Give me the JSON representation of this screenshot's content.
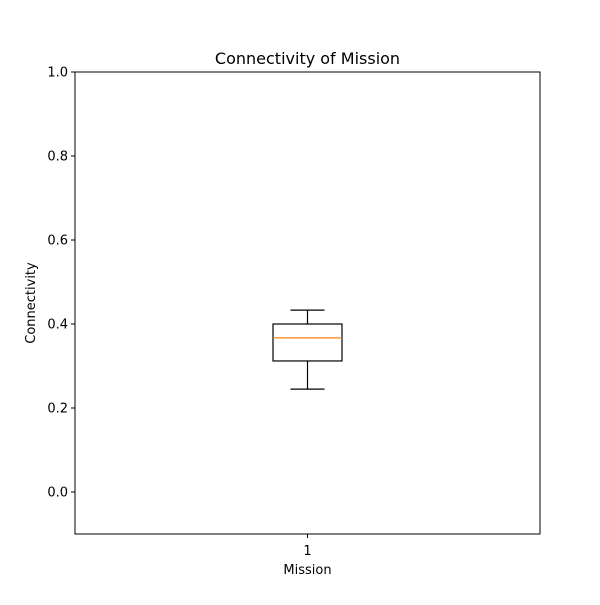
{
  "chart_data": {
    "type": "box",
    "title": "Connectivity of Mission",
    "xlabel": "Mission",
    "ylabel": "Connectivity",
    "categories": [
      "1"
    ],
    "ylim": [
      -0.1,
      1.0
    ],
    "yticks": [
      0.0,
      0.2,
      0.4,
      0.6,
      0.8,
      1.0
    ],
    "ytick_labels": [
      "0.0",
      "0.2",
      "0.4",
      "0.6",
      "0.8",
      "1.0"
    ],
    "grid": false,
    "series": [
      {
        "category": "1",
        "whisker_low": 0.245,
        "q1": 0.312,
        "median": 0.367,
        "q3": 0.4,
        "whisker_high": 0.433
      }
    ],
    "colors": {
      "box": "#000000",
      "median": "#ff7f0e"
    }
  }
}
